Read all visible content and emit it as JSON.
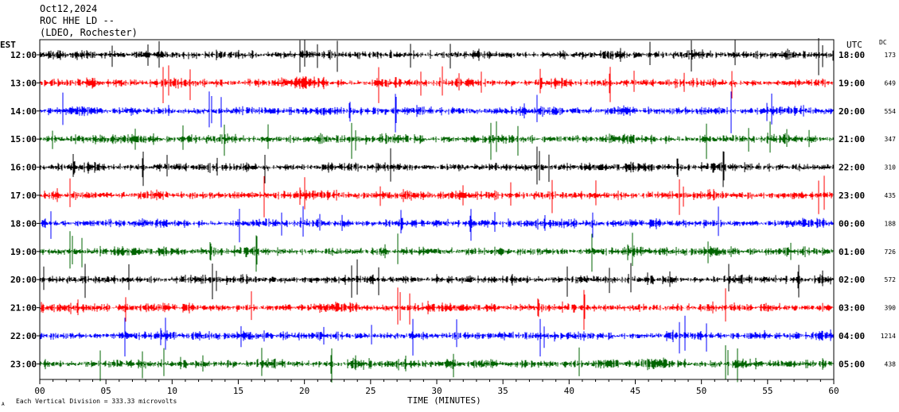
{
  "header": {
    "date": "Oct12,2024",
    "station": "ROC HHE LD --",
    "location": "(LDEO, Rochester)"
  },
  "left_axis_title": "EST",
  "right_axis_title": "UTC",
  "dc_title": "DC",
  "footnote": "Each Vertical Division =  333.33 microvolts",
  "corner_mark": "A",
  "chart_data": {
    "type": "line",
    "title": "",
    "xlabel": "TIME (MINUTES)",
    "xlim": [
      0,
      60
    ],
    "x_ticks": [
      "00",
      "05",
      "10",
      "15",
      "20",
      "25",
      "30",
      "35",
      "40",
      "45",
      "50",
      "55",
      "60"
    ],
    "rows": [
      {
        "est": "12:00",
        "utc": "18:00",
        "dc": "173",
        "color": "#000000"
      },
      {
        "est": "13:00",
        "utc": "19:00",
        "dc": "649",
        "color": "#ff0000"
      },
      {
        "est": "14:00",
        "utc": "20:00",
        "dc": "554",
        "color": "#0000ff"
      },
      {
        "est": "15:00",
        "utc": "21:00",
        "dc": "347",
        "color": "#006400"
      },
      {
        "est": "16:00",
        "utc": "22:00",
        "dc": "310",
        "color": "#000000"
      },
      {
        "est": "17:00",
        "utc": "23:00",
        "dc": "435",
        "color": "#ff0000"
      },
      {
        "est": "18:00",
        "utc": "00:00",
        "dc": "188",
        "color": "#0000ff"
      },
      {
        "est": "19:00",
        "utc": "01:00",
        "dc": "726",
        "color": "#006400"
      },
      {
        "est": "20:00",
        "utc": "02:00",
        "dc": "572",
        "color": "#000000"
      },
      {
        "est": "21:00",
        "utc": "03:00",
        "dc": "390",
        "color": "#ff0000"
      },
      {
        "est": "22:00",
        "utc": "04:00",
        "dc": "1214",
        "color": "#0000ff"
      },
      {
        "est": "23:00",
        "utc": "05:00",
        "dc": "438",
        "color": "#006400"
      }
    ]
  }
}
